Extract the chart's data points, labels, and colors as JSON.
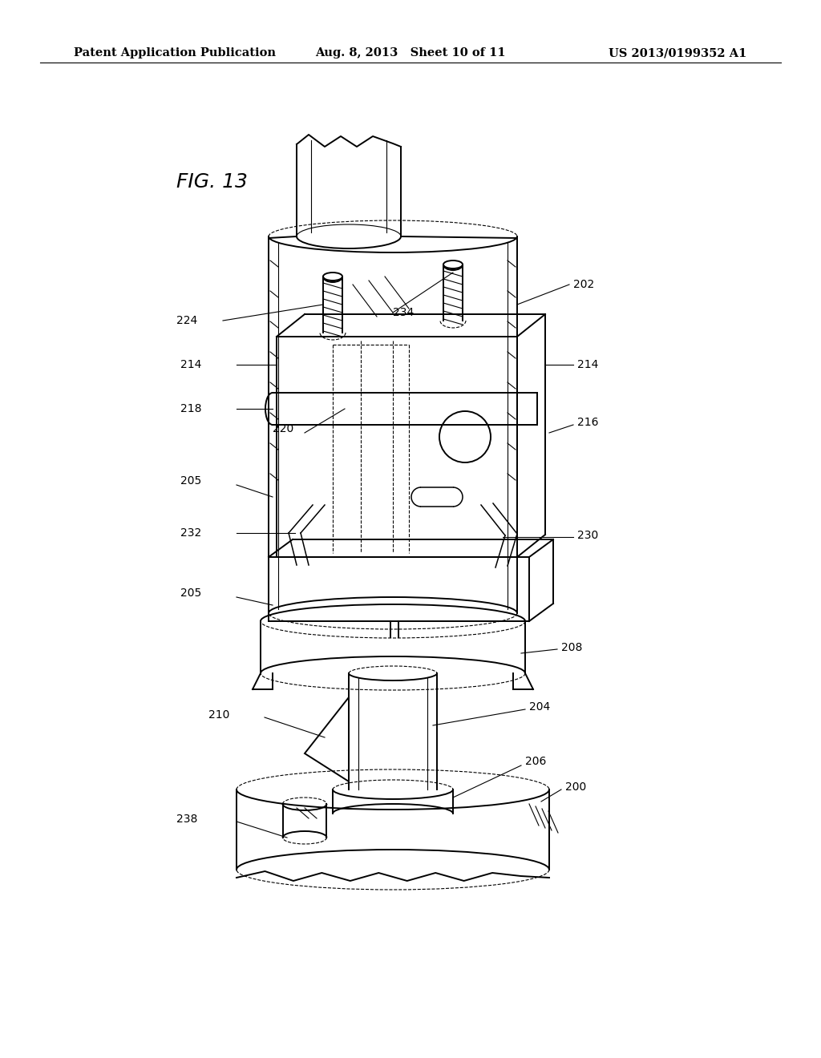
{
  "background_color": "#ffffff",
  "header_left": "Patent Application Publication",
  "header_center": "Aug. 8, 2013   Sheet 10 of 11",
  "header_right": "US 2013/0199352 A1",
  "header_fontsize": 10.5,
  "fig_label": "FIG. 13",
  "fig_label_fontsize": 18,
  "label_fontsize": 10,
  "line_color": "#000000",
  "lw_main": 1.4,
  "lw_thin": 0.8,
  "lw_med": 1.1
}
